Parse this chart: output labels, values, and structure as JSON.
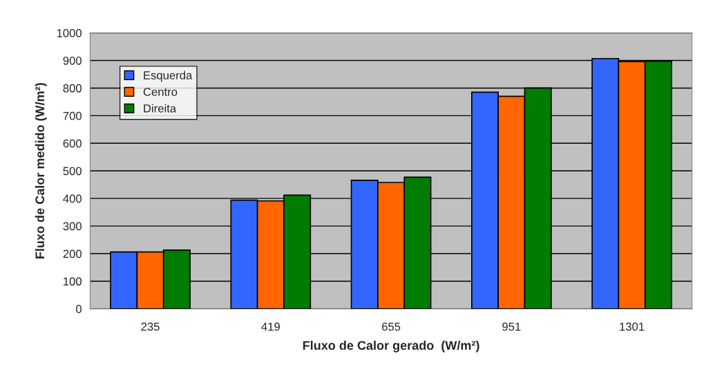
{
  "chart_data": {
    "type": "bar",
    "xlabel": "Fluxo de Calor gerado  (W/m²)",
    "ylabel": "Fluxo de Calor medido (W/m²)",
    "categories": [
      "235",
      "419",
      "655",
      "951",
      "1301"
    ],
    "series": [
      {
        "name": "Esquerda",
        "color": "#3366ff",
        "values": [
          206,
          394,
          466,
          785,
          907
        ]
      },
      {
        "name": "Centro",
        "color": "#ff6600",
        "values": [
          206,
          391,
          458,
          770,
          896
        ]
      },
      {
        "name": "Direita",
        "color": "#007c00",
        "values": [
          213,
          412,
          477,
          800,
          898
        ]
      }
    ],
    "ylim": [
      0,
      1000
    ],
    "yticks": [
      0,
      100,
      200,
      300,
      400,
      500,
      600,
      700,
      800,
      900,
      1000
    ],
    "grid": "y",
    "legend": "top left"
  }
}
